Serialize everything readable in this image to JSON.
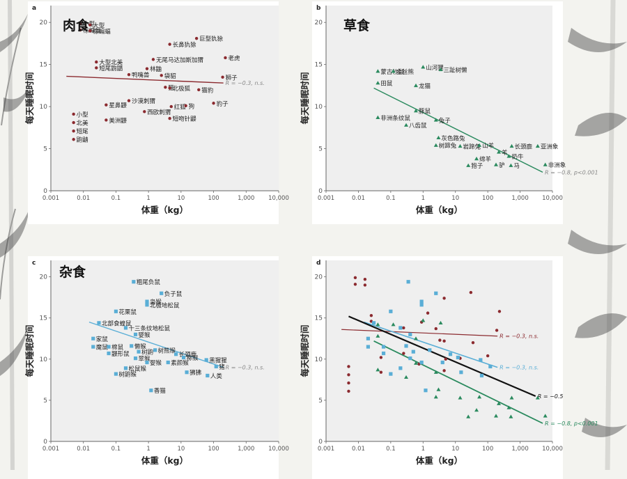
{
  "slide": {
    "decor_icon": "bamboo-painting",
    "colors": {
      "carnivore": "#8b2a2f",
      "herbivore": "#2a8a5e",
      "omnivore": "#5aaed6",
      "all": "#111111",
      "axis": "#666666",
      "grid": "#e4e4e4",
      "corr_text": "#888888"
    }
  },
  "chart_data": [
    {
      "id": "carnivore",
      "panel_letter": "a",
      "title": "肉食",
      "type": "scatter",
      "xlabel": "体重（kg）",
      "ylabel": "每天睡眠时间",
      "x_scale": "log",
      "xlim": [
        0.001,
        10000
      ],
      "ylim": [
        0,
        22
      ],
      "xticks": [
        "0.001",
        "0.01",
        "0.1",
        "1",
        "10",
        "100",
        "1,000",
        "10,000"
      ],
      "yticks": [
        "0",
        "5",
        "10",
        "15",
        "20"
      ],
      "marker": "dot",
      "color": "#8b2a2f",
      "points": [
        {
          "x": 0.008,
          "y": 19.9,
          "label": "小型"
        },
        {
          "x": 0.008,
          "y": 19.1,
          "label": "棕蝙蝠"
        },
        {
          "x": 0.016,
          "y": 19.7,
          "label": "大型"
        },
        {
          "x": 0.016,
          "y": 19.0,
          "label": "棕蝙蝠"
        },
        {
          "x": 30,
          "y": 18.1,
          "label": "巨型犰狳"
        },
        {
          "x": 4.5,
          "y": 17.4,
          "label": "长鼻犰狳"
        },
        {
          "x": 230,
          "y": 15.8,
          "label": "老虎"
        },
        {
          "x": 1.4,
          "y": 15.6,
          "label": "无尾马达加斯加猬"
        },
        {
          "x": 0.025,
          "y": 15.3,
          "label": "大型北美"
        },
        {
          "x": 0.025,
          "y": 14.6,
          "label": "短尾鼩鼱"
        },
        {
          "x": 0.9,
          "y": 14.5,
          "label": "林鼬"
        },
        {
          "x": 0.25,
          "y": 13.8,
          "label": "鸭嘴兽"
        },
        {
          "x": 2.5,
          "y": 13.7,
          "label": "袋貂"
        },
        {
          "x": 190,
          "y": 13.5,
          "label": "狮子"
        },
        {
          "x": 3.3,
          "y": 12.3,
          "label": "猫"
        },
        {
          "x": 4.5,
          "y": 12.2,
          "label": "北极狐"
        },
        {
          "x": 35,
          "y": 12.0,
          "label": "猫豹"
        },
        {
          "x": 0.25,
          "y": 10.7,
          "label": "沙漠刺猬"
        },
        {
          "x": 0.05,
          "y": 10.2,
          "label": "星鼻鼹"
        },
        {
          "x": 5,
          "y": 10.0,
          "label": "红狐"
        },
        {
          "x": 14,
          "y": 10.1,
          "label": "狗"
        },
        {
          "x": 100,
          "y": 10.4,
          "label": "豹子"
        },
        {
          "x": 0.75,
          "y": 9.4,
          "label": "西欧刺猬"
        },
        {
          "x": 4.5,
          "y": 8.6,
          "label": "短吻针鼹"
        },
        {
          "x": 0.005,
          "y": 9.1,
          "label": "小型"
        },
        {
          "x": 0.005,
          "y": 8.1,
          "label": "北美"
        },
        {
          "x": 0.05,
          "y": 8.4,
          "label": "美洲鼹"
        },
        {
          "x": 0.005,
          "y": 7.1,
          "label": "短尾"
        },
        {
          "x": 0.005,
          "y": 6.1,
          "label": "鼩鼱"
        }
      ],
      "fit": {
        "x": [
          0.003,
          200
        ],
        "y": [
          13.6,
          12.8
        ],
        "annotation": "R = −0.3, n.s."
      }
    },
    {
      "id": "herbivore",
      "panel_letter": "b",
      "title": "草食",
      "type": "scatter",
      "xlabel": "体重（kg）",
      "ylabel": "每天睡眠时间",
      "x_scale": "log",
      "xlim": [
        0.001,
        10000
      ],
      "ylim": [
        0,
        22
      ],
      "xticks": [
        "0.001",
        "0.01",
        "0.1",
        "1",
        "10",
        "100",
        "1,000",
        "10,000"
      ],
      "yticks": [
        "0",
        "5",
        "10",
        "15",
        "20"
      ],
      "marker": "triangle",
      "color": "#2a8a5e",
      "points": [
        {
          "x": 1.0,
          "y": 14.7,
          "label": "山河狸"
        },
        {
          "x": 3.5,
          "y": 14.4,
          "label": "三趾树懒"
        },
        {
          "x": 0.04,
          "y": 14.2,
          "label": "蒙古沙鼠"
        },
        {
          "x": 0.12,
          "y": 14.2,
          "label": "金丝熊"
        },
        {
          "x": 0.04,
          "y": 12.8,
          "label": "田鼠"
        },
        {
          "x": 0.6,
          "y": 12.5,
          "label": "龙猫"
        },
        {
          "x": 0.6,
          "y": 9.5,
          "label": "豚鼠"
        },
        {
          "x": 0.04,
          "y": 8.7,
          "label": "非洲条纹鼠"
        },
        {
          "x": 2.5,
          "y": 8.4,
          "label": "兔子"
        },
        {
          "x": 0.3,
          "y": 7.8,
          "label": "八齿鼠"
        },
        {
          "x": 3,
          "y": 6.3,
          "label": "灰色路兔"
        },
        {
          "x": 2.5,
          "y": 5.4,
          "label": "树蹄兔"
        },
        {
          "x": 14,
          "y": 5.3,
          "label": "岩蹄兔"
        },
        {
          "x": 55,
          "y": 5.4,
          "label": "山羊"
        },
        {
          "x": 550,
          "y": 5.3,
          "label": "长颈鹿"
        },
        {
          "x": 3500,
          "y": 5.3,
          "label": "亚洲象"
        },
        {
          "x": 220,
          "y": 4.6,
          "label": "羊"
        },
        {
          "x": 450,
          "y": 4.1,
          "label": "奶牛"
        },
        {
          "x": 45,
          "y": 3.8,
          "label": "绵羊"
        },
        {
          "x": 6000,
          "y": 3.1,
          "label": "非洲象"
        },
        {
          "x": 25,
          "y": 3.0,
          "label": "狍子"
        },
        {
          "x": 180,
          "y": 3.1,
          "label": "驴"
        },
        {
          "x": 520,
          "y": 3.0,
          "label": "马"
        }
      ],
      "fit": {
        "x": [
          0.03,
          5000
        ],
        "y": [
          12.2,
          2.2
        ],
        "annotation": "R = −0.8, p<0.001"
      }
    },
    {
      "id": "omnivore",
      "panel_letter": "c",
      "title": "杂食",
      "type": "scatter",
      "xlabel": "体重（kg）",
      "ylabel": "每天睡眠时间",
      "x_scale": "log",
      "xlim": [
        0.001,
        10000
      ],
      "ylim": [
        0,
        22
      ],
      "xticks": [
        "0.001",
        "0.01",
        "0.1",
        "1",
        "10",
        "100",
        "1,000",
        "10,000"
      ],
      "yticks": [
        "0",
        "5",
        "10",
        "15",
        "20"
      ],
      "marker": "square",
      "color": "#5aaed6",
      "points": [
        {
          "x": 0.35,
          "y": 19.4,
          "label": "粗尾负鼠"
        },
        {
          "x": 2.5,
          "y": 18.0,
          "label": "负子鼠"
        },
        {
          "x": 0.9,
          "y": 17.0,
          "label": "枭猴"
        },
        {
          "x": 0.9,
          "y": 16.6,
          "label": "北极地松鼠"
        },
        {
          "x": 0.1,
          "y": 15.8,
          "label": "花栗鼠"
        },
        {
          "x": 0.03,
          "y": 14.4,
          "label": "北部食蝗鼠"
        },
        {
          "x": 0.2,
          "y": 13.8,
          "label": "十三条纹地松鼠"
        },
        {
          "x": 0.4,
          "y": 13.0,
          "label": "婴猴"
        },
        {
          "x": 0.02,
          "y": 12.5,
          "label": "家鼠"
        },
        {
          "x": 0.02,
          "y": 11.5,
          "label": "魔鼠"
        },
        {
          "x": 0.06,
          "y": 11.5,
          "label": "棉鼠"
        },
        {
          "x": 0.3,
          "y": 11.6,
          "label": "懒猴"
        },
        {
          "x": 0.06,
          "y": 10.7,
          "label": "鼹形鼠"
        },
        {
          "x": 0.5,
          "y": 10.9,
          "label": "树鼩"
        },
        {
          "x": 1.6,
          "y": 11.1,
          "label": "树熊猴"
        },
        {
          "x": 7,
          "y": 10.6,
          "label": "长颈鹿"
        },
        {
          "x": 0.4,
          "y": 10.1,
          "label": "翠猴"
        },
        {
          "x": 12,
          "y": 10.2,
          "label": "猕猴"
        },
        {
          "x": 60,
          "y": 9.9,
          "label": "黑猩猩"
        },
        {
          "x": 0.9,
          "y": 9.6,
          "label": "婴猴"
        },
        {
          "x": 4,
          "y": 9.6,
          "label": "素颜猴"
        },
        {
          "x": 120,
          "y": 9.1,
          "label": "猪"
        },
        {
          "x": 0.2,
          "y": 8.9,
          "label": "松鼠猴"
        },
        {
          "x": 15,
          "y": 8.4,
          "label": "狒狒"
        },
        {
          "x": 0.1,
          "y": 8.2,
          "label": "树鼩猴"
        },
        {
          "x": 65,
          "y": 8.0,
          "label": "人类"
        },
        {
          "x": 1.2,
          "y": 6.2,
          "label": "香猫"
        }
      ],
      "fit": {
        "x": [
          0.015,
          200
        ],
        "y": [
          14.5,
          9.0
        ],
        "annotation": "R = −0.3, n.s."
      }
    },
    {
      "id": "all",
      "panel_letter": "d",
      "title": "",
      "type": "scatter",
      "xlabel": "体重（kg）",
      "ylabel": "每天睡眠时间",
      "x_scale": "log",
      "xlim": [
        0.001,
        10000
      ],
      "ylim": [
        0,
        22
      ],
      "xticks": [
        "0.001",
        "0.01",
        "0.1",
        "1",
        "10",
        "100",
        "1,000",
        "10,000"
      ],
      "yticks": [
        "0",
        "5",
        "10",
        "15",
        "20"
      ],
      "series_refs": [
        "carnivore",
        "herbivore",
        "omnivore"
      ],
      "fits": [
        {
          "x": [
            0.003,
            200
          ],
          "y": [
            13.6,
            12.8
          ],
          "annotation": "R = −0.3, n.s.",
          "color": "#8b2a2f",
          "width": 1.2
        },
        {
          "x": [
            0.015,
            200
          ],
          "y": [
            14.5,
            9.0
          ],
          "annotation": "R = −0.3, n.s.",
          "color": "#5aaed6",
          "width": 1.6
        },
        {
          "x": [
            0.005,
            3000
          ],
          "y": [
            15.2,
            5.5
          ],
          "annotation": "R = −0.5",
          "color": "#111111",
          "width": 2.2
        },
        {
          "x": [
            0.03,
            5000
          ],
          "y": [
            12.2,
            2.2
          ],
          "annotation": "R = −0.8, p<0.001",
          "color": "#2a8a5e",
          "width": 1.8
        }
      ]
    }
  ]
}
